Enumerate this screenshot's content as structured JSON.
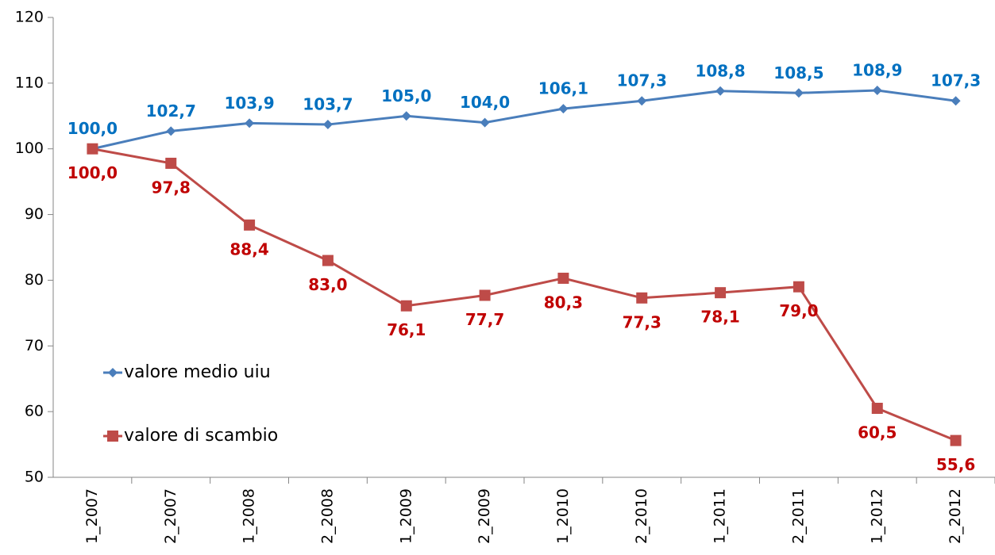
{
  "chart_data": {
    "type": "line",
    "categories": [
      "1_2007",
      "2_2007",
      "1_2008",
      "2_2008",
      "1_2009",
      "2_2009",
      "1_2010",
      "2_2010",
      "1_2011",
      "2_2011",
      "1_2012",
      "2_2012"
    ],
    "series": [
      {
        "name": "valore medio uiu",
        "color": "#4a7ebb",
        "label_color": "#0070c0",
        "marker": "diamond",
        "values": [
          100.0,
          102.7,
          103.9,
          103.7,
          105.0,
          104.0,
          106.1,
          107.3,
          108.8,
          108.5,
          108.9,
          107.3
        ],
        "value_labels": [
          "100,0",
          "102,7",
          "103,9",
          "103,7",
          "105,0",
          "104,0",
          "106,1",
          "107,3",
          "108,8",
          "108,5",
          "108,9",
          "107,3"
        ]
      },
      {
        "name": "valore di scambio",
        "color": "#be4b48",
        "label_color": "#c00000",
        "marker": "square",
        "values": [
          100.0,
          97.8,
          88.4,
          83.0,
          76.1,
          77.7,
          80.3,
          77.3,
          78.1,
          79.0,
          60.5,
          55.6
        ],
        "value_labels": [
          "100,0",
          "97,8",
          "88,4",
          "83,0",
          "76,1",
          "77,7",
          "80,3",
          "77,3",
          "78,1",
          "79,0",
          "60,5",
          "55,6"
        ]
      }
    ],
    "ylim": [
      50,
      120
    ],
    "yticks": [
      50,
      60,
      70,
      80,
      90,
      100,
      110,
      120
    ],
    "grid": false,
    "legend": "left"
  }
}
